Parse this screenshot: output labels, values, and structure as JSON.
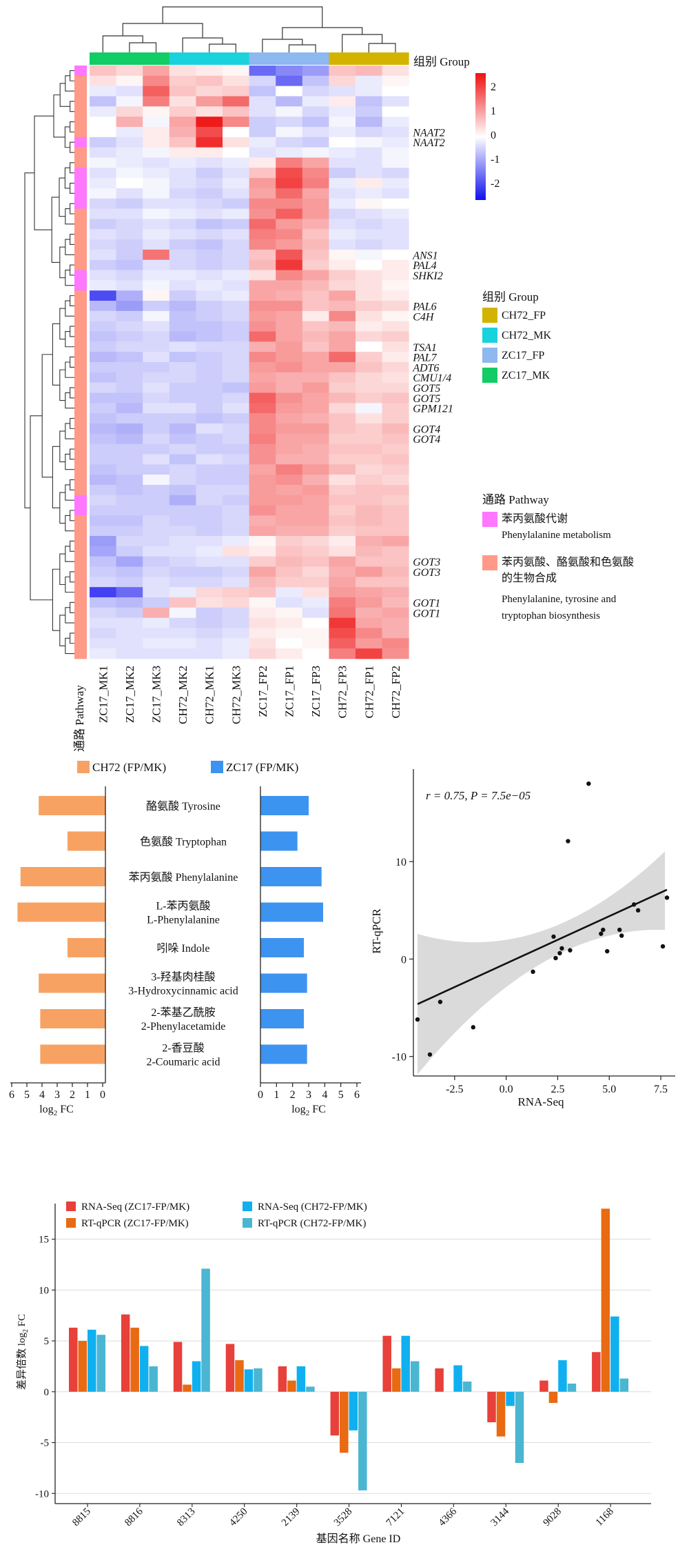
{
  "colors": {
    "ZC17_MK": "#12cc66",
    "CH72_MK": "#1ad2dc",
    "ZC17_FP": "#8db8f0",
    "CH72_FP": "#d2b400",
    "pathway_phe": "#ff77ff",
    "pathway_aro": "#ff9a88",
    "heat_low": "#1010ee",
    "heat_mid": "#ffffff",
    "heat_high": "#ee1010",
    "bar_ch72": "#f7a263",
    "bar_zc17": "#3d93f0",
    "rna_zc17": "#e8403a",
    "qpcr_zc17": "#e86a12",
    "rna_ch72": "#10b0f0",
    "qpcr_ch72": "#4ab6d2"
  },
  "heatmap": {
    "group_title": "组别 Group",
    "pathway_axis_label": "通路 Pathway",
    "columns": [
      "ZC17_MK1",
      "ZC17_MK2",
      "ZC17_MK3",
      "CH72_MK2",
      "CH72_MK1",
      "CH72_MK3",
      "ZC17_FP2",
      "ZC17_FP1",
      "ZC17_FP3",
      "CH72_FP3",
      "CH72_FP1",
      "CH72_FP2"
    ],
    "column_groups": [
      "ZC17_MK",
      "ZC17_MK",
      "ZC17_MK",
      "CH72_MK",
      "CH72_MK",
      "CH72_MK",
      "ZC17_FP",
      "ZC17_FP",
      "ZC17_FP",
      "CH72_FP",
      "CH72_FP",
      "CH72_FP"
    ],
    "row_pathway": [
      "phe",
      "aro",
      "aro",
      "aro",
      "aro",
      "aro",
      "aro",
      "phe",
      "aro",
      "aro",
      "phe",
      "phe",
      "phe",
      "phe",
      "aro",
      "aro",
      "aro",
      "aro",
      "aro",
      "aro",
      "phe",
      "phe",
      "aro",
      "aro",
      "aro",
      "aro",
      "aro",
      "aro",
      "aro",
      "aro",
      "aro",
      "aro",
      "aro",
      "aro",
      "aro",
      "aro",
      "aro",
      "aro",
      "aro",
      "aro",
      "aro",
      "aro",
      "phe",
      "phe",
      "aro",
      "aro",
      "aro",
      "aro",
      "aro",
      "aro",
      "aro",
      "aro",
      "aro",
      "aro",
      "aro",
      "aro",
      "aro",
      "aro"
    ],
    "values": [
      [
        0.6,
        0.4,
        0.9,
        0.3,
        0.2,
        0.1,
        -1.5,
        -1.2,
        -1.0,
        0.6,
        0.7,
        0.3
      ],
      [
        0.3,
        0.1,
        1.2,
        0.5,
        0.6,
        0.3,
        -0.4,
        -1.5,
        -0.6,
        0.4,
        -0.2,
        0.1
      ],
      [
        -0.2,
        -0.3,
        1.6,
        0.6,
        0.4,
        0.5,
        -0.6,
        0.0,
        -0.4,
        -0.3,
        -0.2,
        0.0
      ],
      [
        -0.6,
        -0.1,
        1.3,
        0.3,
        1.0,
        1.5,
        -0.3,
        -0.7,
        -0.2,
        0.2,
        -0.6,
        -0.3
      ],
      [
        -0.2,
        0.4,
        0.1,
        0.5,
        0.3,
        0.6,
        -0.3,
        -0.1,
        -0.4,
        -0.2,
        -0.5,
        0.0
      ],
      [
        0.0,
        0.8,
        -0.1,
        0.9,
        2.3,
        1.2,
        -0.5,
        -0.4,
        -0.6,
        -0.1,
        -0.7,
        -0.2
      ],
      [
        0.0,
        -0.2,
        0.2,
        0.8,
        1.8,
        0.0,
        -0.5,
        -0.1,
        -0.3,
        -0.2,
        -0.4,
        -0.3
      ],
      [
        -0.5,
        -0.3,
        0.2,
        0.6,
        2.1,
        0.3,
        -0.2,
        -0.4,
        -0.5,
        0.0,
        -0.1,
        -0.2
      ],
      [
        -0.3,
        -0.2,
        -0.1,
        0.2,
        0.2,
        0.0,
        -0.3,
        -0.2,
        -0.1,
        -0.2,
        -0.3,
        -0.1
      ],
      [
        -0.1,
        -0.2,
        -0.3,
        -0.2,
        -0.3,
        -0.2,
        0.2,
        1.3,
        0.9,
        -0.3,
        -0.3,
        -0.1
      ],
      [
        -0.3,
        -0.1,
        -0.2,
        -0.3,
        -0.5,
        -0.3,
        0.6,
        1.8,
        1.2,
        -0.5,
        -0.3,
        -0.4
      ],
      [
        -0.2,
        0.0,
        -0.1,
        -0.3,
        -0.4,
        -0.2,
        1.0,
        1.9,
        1.3,
        -0.2,
        0.2,
        -0.2
      ],
      [
        -0.1,
        -0.3,
        -0.1,
        -0.4,
        -0.5,
        -0.3,
        0.9,
        1.5,
        0.9,
        -0.3,
        -0.2,
        -0.3
      ],
      [
        -0.4,
        -0.5,
        -0.3,
        -0.3,
        -0.4,
        -0.5,
        1.2,
        1.2,
        1.0,
        -0.2,
        0.1,
        0.0
      ],
      [
        -0.3,
        -0.3,
        -0.1,
        -0.2,
        -0.3,
        -0.2,
        1.1,
        1.6,
        1.0,
        -0.4,
        -0.3,
        -0.2
      ],
      [
        -0.5,
        -0.4,
        -0.3,
        -0.4,
        -0.6,
        -0.5,
        1.5,
        1.0,
        0.8,
        -0.3,
        -0.4,
        -0.3
      ],
      [
        -0.3,
        -0.4,
        -0.2,
        -0.3,
        -0.4,
        -0.3,
        1.3,
        1.2,
        0.6,
        -0.2,
        -0.3,
        -0.3
      ],
      [
        -0.4,
        -0.5,
        -0.3,
        -0.5,
        -0.6,
        -0.4,
        1.2,
        1.0,
        0.7,
        -0.3,
        -0.4,
        -0.3
      ],
      [
        -0.3,
        -0.5,
        1.4,
        -0.4,
        -0.5,
        -0.4,
        0.6,
        1.7,
        0.6,
        0.1,
        -0.1,
        0.0
      ],
      [
        -0.5,
        -0.6,
        -0.3,
        -0.4,
        -0.5,
        -0.4,
        0.7,
        2.0,
        0.5,
        0.2,
        0.0,
        0.2
      ],
      [
        -0.3,
        -0.4,
        -0.2,
        -0.2,
        -0.3,
        -0.2,
        0.3,
        1.2,
        0.9,
        0.5,
        0.3,
        0.2
      ],
      [
        -0.2,
        -0.3,
        -0.1,
        -0.3,
        -0.2,
        -0.3,
        0.9,
        0.9,
        0.7,
        0.4,
        0.3,
        0.1
      ],
      [
        -1.8,
        -0.8,
        0.1,
        -0.5,
        -0.3,
        -0.2,
        0.9,
        0.8,
        0.6,
        0.9,
        0.3,
        0.2
      ],
      [
        -0.7,
        -1.0,
        -0.5,
        -0.7,
        -0.5,
        -0.4,
        1.1,
        1.1,
        0.6,
        0.7,
        0.5,
        0.4
      ],
      [
        -0.4,
        -0.5,
        -0.1,
        -0.6,
        -0.5,
        -0.4,
        1.0,
        0.9,
        0.2,
        1.2,
        0.3,
        0.1
      ],
      [
        -0.5,
        -0.4,
        -0.3,
        -0.6,
        -0.6,
        -0.5,
        1.1,
        0.9,
        0.6,
        0.7,
        0.2,
        0.3
      ],
      [
        -0.6,
        -0.5,
        -0.4,
        -0.7,
        -0.6,
        -0.5,
        1.5,
        0.9,
        0.7,
        0.9,
        0.4,
        0.5
      ],
      [
        -0.5,
        -0.4,
        -0.4,
        -0.3,
        -0.4,
        -0.4,
        0.8,
        1.0,
        0.6,
        0.9,
        0.0,
        0.3
      ],
      [
        -0.7,
        -0.6,
        -0.3,
        -0.6,
        -0.5,
        -0.4,
        1.2,
        1.0,
        0.9,
        1.5,
        0.5,
        0.2
      ],
      [
        -0.5,
        -0.5,
        -0.5,
        -0.4,
        -0.5,
        -0.4,
        1.0,
        1.1,
        0.9,
        0.9,
        0.6,
        0.4
      ],
      [
        -0.6,
        -0.5,
        -0.4,
        -0.4,
        -0.5,
        -0.4,
        0.9,
        0.8,
        0.8,
        0.6,
        0.4,
        0.3
      ],
      [
        -0.4,
        -0.5,
        -0.3,
        -0.5,
        -0.5,
        -0.6,
        1.0,
        0.8,
        1.0,
        0.5,
        0.4,
        0.4
      ],
      [
        -0.6,
        -0.6,
        -0.4,
        -0.5,
        -0.5,
        -0.4,
        1.6,
        1.1,
        0.9,
        0.7,
        0.5,
        0.6
      ],
      [
        -0.5,
        -0.7,
        -0.3,
        -0.3,
        -0.5,
        -0.3,
        1.5,
        1.0,
        0.9,
        0.4,
        -0.1,
        0.5
      ],
      [
        -0.6,
        -0.5,
        -0.5,
        -0.5,
        -0.6,
        -0.5,
        1.2,
        0.9,
        0.8,
        0.6,
        0.3,
        0.5
      ],
      [
        -0.7,
        -0.8,
        -0.5,
        -0.7,
        -0.3,
        -0.4,
        1.2,
        1.0,
        1.0,
        0.6,
        0.5,
        0.7
      ],
      [
        -0.6,
        -0.7,
        -0.4,
        -0.6,
        -0.5,
        -0.4,
        1.3,
        0.9,
        0.9,
        0.5,
        0.5,
        0.6
      ],
      [
        -0.5,
        -0.5,
        -0.5,
        -0.4,
        -0.5,
        -0.5,
        1.1,
        0.9,
        0.8,
        0.6,
        0.6,
        0.5
      ],
      [
        -0.5,
        -0.5,
        -0.3,
        -0.6,
        -0.3,
        -0.4,
        1.1,
        0.8,
        0.8,
        0.5,
        0.5,
        0.6
      ],
      [
        -0.6,
        -0.5,
        -0.5,
        -0.4,
        -0.5,
        -0.5,
        0.9,
        1.3,
        1.0,
        0.7,
        0.4,
        0.5
      ],
      [
        -0.7,
        -0.6,
        -0.1,
        -0.4,
        -0.5,
        -0.5,
        1.0,
        1.1,
        0.8,
        0.3,
        0.5,
        0.4
      ],
      [
        -0.5,
        -0.6,
        -0.5,
        -0.6,
        -0.4,
        -0.4,
        1.0,
        0.9,
        1.0,
        0.5,
        0.6,
        0.6
      ],
      [
        -0.4,
        -0.5,
        -0.5,
        -0.8,
        -0.4,
        -0.5,
        1.0,
        1.0,
        0.9,
        0.6,
        0.6,
        0.5
      ],
      [
        -0.5,
        -0.5,
        -0.5,
        -0.5,
        -0.5,
        -0.4,
        1.1,
        0.9,
        0.9,
        0.5,
        0.7,
        0.6
      ],
      [
        -0.6,
        -0.6,
        -0.4,
        -0.5,
        -0.5,
        -0.4,
        0.8,
        0.9,
        0.9,
        0.6,
        0.7,
        0.6
      ],
      [
        -0.5,
        -0.5,
        -0.4,
        -0.4,
        -0.5,
        -0.4,
        0.9,
        0.8,
        0.8,
        0.5,
        0.6,
        0.6
      ],
      [
        -1.0,
        -0.4,
        -0.4,
        -0.3,
        -0.3,
        -0.2,
        0.1,
        0.5,
        0.4,
        0.2,
        0.8,
        0.9
      ],
      [
        -0.9,
        -0.5,
        -0.3,
        -0.3,
        -0.2,
        0.3,
        0.2,
        0.6,
        0.5,
        0.3,
        0.7,
        0.6
      ],
      [
        -0.6,
        -0.9,
        -0.5,
        -0.4,
        -0.3,
        -0.3,
        0.5,
        0.7,
        0.6,
        0.9,
        0.6,
        0.6
      ],
      [
        -0.5,
        -0.6,
        -0.4,
        -0.5,
        -0.5,
        -0.4,
        0.9,
        0.6,
        0.4,
        0.8,
        1.0,
        0.7
      ],
      [
        -0.4,
        -0.5,
        -0.3,
        -0.4,
        -0.4,
        -0.3,
        0.7,
        0.5,
        0.5,
        0.9,
        0.6,
        0.6
      ],
      [
        -1.9,
        -1.5,
        -0.3,
        -0.2,
        0.4,
        0.5,
        0.6,
        -0.2,
        0.3,
        1.0,
        0.9,
        0.8
      ],
      [
        -0.6,
        -0.7,
        -0.5,
        0.6,
        0.3,
        0.4,
        0.1,
        -0.3,
        -0.2,
        1.3,
        1.0,
        0.7
      ],
      [
        -0.4,
        -0.5,
        0.8,
        -0.1,
        -0.5,
        -0.4,
        0.2,
        0.1,
        -0.3,
        1.4,
        0.8,
        0.9
      ],
      [
        -0.3,
        -0.3,
        -0.2,
        -0.4,
        -0.5,
        -0.4,
        0.3,
        0.2,
        0.0,
        2.0,
        0.9,
        0.8
      ],
      [
        -0.4,
        -0.3,
        -0.3,
        -0.3,
        -0.4,
        -0.3,
        0.2,
        0.1,
        0.1,
        1.8,
        1.2,
        0.8
      ],
      [
        -0.3,
        -0.3,
        -0.2,
        -0.2,
        -0.3,
        -0.2,
        0.3,
        0.0,
        0.1,
        1.6,
        1.0,
        1.2
      ],
      [
        -0.2,
        -0.3,
        -0.3,
        -0.3,
        -0.3,
        -0.2,
        0.4,
        0.2,
        0.0,
        1.3,
        1.9,
        1.1
      ]
    ],
    "gene_labels": [
      {
        "row": 6,
        "text": "NAAT2"
      },
      {
        "row": 7,
        "text": "NAAT2"
      },
      {
        "row": 18,
        "text": "ANS1"
      },
      {
        "row": 19,
        "text": "PAL4"
      },
      {
        "row": 20,
        "text": "SHKI2"
      },
      {
        "row": 23,
        "text": "PAL6"
      },
      {
        "row": 24,
        "text": "C4H"
      },
      {
        "row": 27,
        "text": "TSA1"
      },
      {
        "row": 28,
        "text": "PAL7"
      },
      {
        "row": 29,
        "text": "ADT6"
      },
      {
        "row": 30,
        "text": "CMU1/4"
      },
      {
        "row": 31,
        "text": "GOT5"
      },
      {
        "row": 32,
        "text": "GOT5"
      },
      {
        "row": 33,
        "text": "GPM121"
      },
      {
        "row": 35,
        "text": "GOT4"
      },
      {
        "row": 36,
        "text": "GOT4"
      },
      {
        "row": 48,
        "text": "GOT3"
      },
      {
        "row": 49,
        "text": "GOT3"
      },
      {
        "row": 52,
        "text": "GOT1"
      },
      {
        "row": 53,
        "text": "GOT1"
      }
    ],
    "colorbar_ticks": [
      "2",
      "1",
      "0",
      "-1",
      "-2"
    ],
    "legend_groups": [
      "CH72_FP",
      "CH72_MK",
      "ZC17_FP",
      "ZC17_MK"
    ],
    "pathway_title": "通路 Pathway",
    "pathway_phe_zh": "苯丙氨酸代谢",
    "pathway_phe_en": "Phenylalanine metabolism",
    "pathway_aro_zh1": "苯丙氨酸、酪氨酸和色氨酸",
    "pathway_aro_zh2": "的生物合成",
    "pathway_aro_en1": "Phenylalanine, tyrosine and",
    "pathway_aro_en2": "tryptophan biosynthesis"
  },
  "chart_data": [
    {
      "type": "bar",
      "orientation": "horizontal-mirrored",
      "categories_zh": [
        "酪氨酸",
        "色氨酸",
        "苯丙氨酸",
        "L-苯丙氨酸",
        "吲哚",
        "3-羟基肉桂酸",
        "2-苯基乙酰胺",
        "2-香豆酸"
      ],
      "categories_en": [
        "Tyrosine",
        "Tryptophan",
        "Phenylalanine",
        "L-Phenylalanine",
        "Indole",
        "3-Hydroxycinnamic acid",
        "2-Phenylacetamide",
        "2-Coumaric acid"
      ],
      "series": [
        {
          "name": "CH72 (FP/MK)",
          "values": [
            4.4,
            2.5,
            5.6,
            5.8,
            2.5,
            4.4,
            4.3,
            4.3
          ]
        },
        {
          "name": "ZC17 (FP/MK)",
          "values": [
            3.0,
            2.3,
            3.8,
            3.9,
            2.7,
            2.9,
            2.7,
            2.9
          ]
        }
      ],
      "xlabel": "log2 FC",
      "xlabel_main": "log",
      "xlabel_sub": "2",
      "xlabel_tail": " FC",
      "xlim": [
        0,
        6
      ],
      "ticks": [
        "6",
        "5",
        "4",
        "3",
        "2",
        "1",
        "0"
      ],
      "ticks_right": [
        "0",
        "1",
        "2",
        "3",
        "4",
        "5",
        "6"
      ]
    },
    {
      "type": "scatter",
      "x": [
        -4.3,
        -3.7,
        -3.2,
        -1.6,
        1.3,
        2.3,
        2.4,
        2.6,
        2.7,
        3.1,
        3.0,
        4.6,
        4.7,
        4.9,
        5.5,
        5.6,
        6.2,
        6.4,
        7.6,
        7.8,
        4.0
      ],
      "y": [
        -6.2,
        -9.8,
        -4.4,
        -7.0,
        -1.3,
        2.3,
        0.1,
        0.6,
        1.1,
        0.9,
        12.1,
        2.6,
        3.0,
        0.8,
        3.0,
        2.4,
        5.6,
        5.0,
        1.3,
        6.3,
        18.0
      ],
      "fit": {
        "slope": 0.97,
        "intercept": -0.45
      },
      "annotation": "r = 0.75, P = 7.5e−05",
      "xlabel": "RNA-Seq",
      "ylabel": "RT-qPCR",
      "xlim": [
        -4.5,
        8.2
      ],
      "ylim": [
        -12,
        19.5
      ],
      "xticks": [
        "-2.5",
        "0.0",
        "2.5",
        "5.0",
        "7.5"
      ],
      "yticks": [
        "10",
        "0",
        "-10"
      ]
    },
    {
      "type": "bar",
      "categories": [
        "8815",
        "8816",
        "8313",
        "4250",
        "2139",
        "3528",
        "7121",
        "4366",
        "3144",
        "9028",
        "1168"
      ],
      "series": [
        {
          "name": "RNA-Seq (ZC17-FP/MK)",
          "values": [
            6.3,
            7.6,
            4.9,
            4.7,
            2.5,
            -4.3,
            5.5,
            2.3,
            -3.0,
            1.1,
            3.9
          ]
        },
        {
          "name": "RT-qPCR (ZC17-FP/MK)",
          "values": [
            5.0,
            6.3,
            0.7,
            3.1,
            1.1,
            -6.0,
            2.3,
            null,
            -4.4,
            -1.1,
            18.0
          ]
        },
        {
          "name": "RNA-Seq (CH72-FP/MK)",
          "values": [
            6.1,
            4.5,
            3.0,
            2.2,
            2.5,
            -3.8,
            5.5,
            2.6,
            -1.4,
            3.1,
            7.4
          ]
        },
        {
          "name": "RT-qPCR (CH72-FP/MK)",
          "values": [
            5.6,
            2.5,
            12.1,
            2.3,
            0.5,
            -9.7,
            3.0,
            1.0,
            -7.0,
            0.8,
            1.3
          ]
        }
      ],
      "xlabel": "基因名称 Gene ID",
      "ylabel": "差异倍数 log2 FC",
      "ylabel_main": "差异倍数 log",
      "ylabel_sub": "2",
      "ylabel_tail": " FC",
      "ylim": [
        -11,
        18.5
      ],
      "yticks": [
        "15",
        "10",
        "5",
        "0",
        "-5",
        "-10"
      ]
    }
  ]
}
